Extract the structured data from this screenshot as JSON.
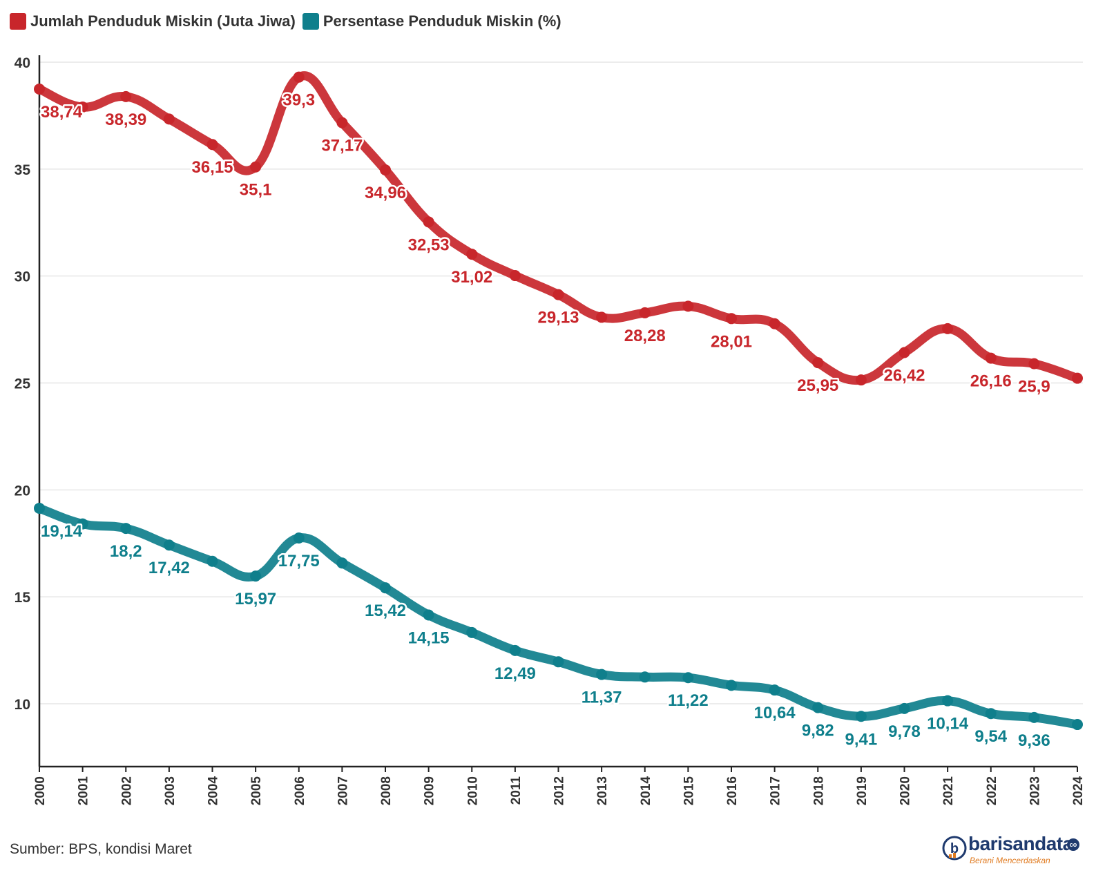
{
  "legend": {
    "series1": "Jumlah Penduduk Miskin (Juta Jiwa)",
    "series2": "Persentase Penduduk Miskin (%)"
  },
  "source": "Sumber: BPS, kondisi Maret",
  "logo": {
    "name": "barisandata",
    "tagline": "Berani Mencerdaskan",
    "suffix": "co"
  },
  "colors": {
    "series1": "#c8262b",
    "series2": "#0f7f8c",
    "grid": "#e6e6e6",
    "axis": "#222222"
  },
  "chart_data": {
    "type": "line",
    "x": [
      "2000",
      "2001",
      "2002",
      "2003",
      "2004",
      "2005",
      "2006",
      "2007",
      "2008",
      "2009",
      "2010",
      "2011",
      "2012",
      "2013",
      "2014",
      "2015",
      "2016",
      "2017",
      "2018",
      "2019",
      "2020",
      "2021",
      "2022",
      "2023",
      "2024"
    ],
    "ylim": [
      7,
      40
    ],
    "yticks": [
      10,
      15,
      20,
      25,
      30,
      35,
      40
    ],
    "grid": true,
    "legend_position": "top-left",
    "series": [
      {
        "name": "Jumlah Penduduk Miskin (Juta Jiwa)",
        "values": [
          38.74,
          37.9,
          38.39,
          37.34,
          36.15,
          35.1,
          39.3,
          37.17,
          34.96,
          32.53,
          31.02,
          30.02,
          29.13,
          28.07,
          28.28,
          28.59,
          28.01,
          27.77,
          25.95,
          25.14,
          26.42,
          27.54,
          26.16,
          25.9,
          25.22
        ],
        "labels": [
          "38,74",
          "",
          "38,39",
          "",
          "36,15",
          "35,1",
          "39,3",
          "37,17",
          "34,96",
          "32,53",
          "31,02",
          "",
          "29,13",
          "",
          "28,28",
          "",
          "28,01",
          "",
          "25,95",
          "",
          "26,42",
          "",
          "26,16",
          "25,9",
          ""
        ]
      },
      {
        "name": "Persentase Penduduk Miskin (%)",
        "values": [
          19.14,
          18.41,
          18.2,
          17.42,
          16.66,
          15.97,
          17.75,
          16.58,
          15.42,
          14.15,
          13.33,
          12.49,
          11.96,
          11.37,
          11.25,
          11.22,
          10.86,
          10.64,
          9.82,
          9.41,
          9.78,
          10.14,
          9.54,
          9.36,
          9.03
        ],
        "labels": [
          "19,14",
          "",
          "18,2",
          "17,42",
          "",
          "15,97",
          "17,75",
          "",
          "15,42",
          "14,15",
          "",
          "12,49",
          "",
          "11,37",
          "",
          "11,22",
          "",
          "10,64",
          "9,82",
          "9,41",
          "9,78",
          "10,14",
          "9,54",
          "9,36",
          ""
        ]
      }
    ]
  }
}
